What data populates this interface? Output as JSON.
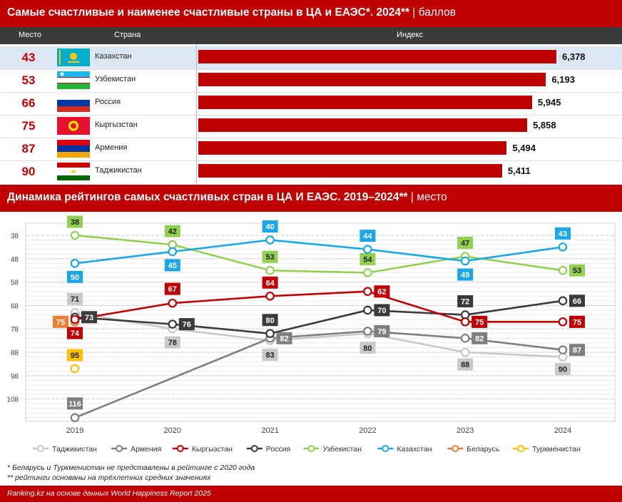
{
  "title1": {
    "bold": "Самые счастливые и наименее счастливые страны в ЦА и ЕАЭС*. 2024**",
    "unit": "| баллов"
  },
  "table_header": {
    "rank": "Место",
    "country": "Страна",
    "index": "Индекс"
  },
  "rows": [
    {
      "rank": "43",
      "country": "Казахстан",
      "value": 6.378,
      "label": "6,378",
      "flag": "kz-flag-icon"
    },
    {
      "rank": "53",
      "country": "Узбекистан",
      "value": 6.193,
      "label": "6,193",
      "flag": "uz-flag-icon"
    },
    {
      "rank": "66",
      "country": "Россия",
      "value": 5.945,
      "label": "5,945",
      "flag": "ru-flag-icon"
    },
    {
      "rank": "75",
      "country": "Кыргызстан",
      "value": 5.858,
      "label": "5,858",
      "flag": "kg-flag-icon"
    },
    {
      "rank": "87",
      "country": "Армения",
      "value": 5.494,
      "label": "5,494",
      "flag": "am-flag-icon"
    },
    {
      "rank": "90",
      "country": "Таджикистан",
      "value": 5.411,
      "label": "5,411",
      "flag": "tj-flag-icon"
    }
  ],
  "title2": {
    "bold": "Динамика рейтингов самых счастливых стран в ЦА И ЕАЭС. 2019–2024**",
    "unit": "| место"
  },
  "chart_data": {
    "type": "line",
    "x": [
      2019,
      2020,
      2021,
      2022,
      2023,
      2024
    ],
    "y_ticks": [
      38,
      48,
      58,
      68,
      78,
      88,
      98,
      108
    ],
    "ylim": [
      36,
      118
    ],
    "y_inverted": true,
    "series": [
      {
        "name": "Таджикистан",
        "color": "#c8c8c8",
        "values": [
          71,
          78,
          83,
          80,
          88,
          90
        ]
      },
      {
        "name": "Армения",
        "color": "#7f7f7f",
        "values": [
          116,
          null,
          82,
          79,
          82,
          87
        ]
      },
      {
        "name": "Кыргызстан",
        "color": "#c00000",
        "values": [
          74,
          67,
          64,
          62,
          75,
          75
        ]
      },
      {
        "name": "Россия",
        "color": "#3a3a3a",
        "values": [
          73,
          76,
          80,
          70,
          72,
          66
        ]
      },
      {
        "name": "Узбекистан",
        "color": "#92d050",
        "values": [
          38,
          42,
          53,
          54,
          47,
          53
        ]
      },
      {
        "name": "Казахстан",
        "color": "#1aa7e8",
        "values": [
          50,
          45,
          40,
          44,
          49,
          43
        ]
      },
      {
        "name": "Беларусь",
        "color": "#ed7d31",
        "values": [
          75,
          null,
          null,
          null,
          null,
          null
        ]
      },
      {
        "name": "Туркменистан",
        "color": "#ffc000",
        "values": [
          95,
          null,
          null,
          null,
          null,
          null
        ]
      }
    ]
  },
  "notes": [
    "* Беларусь и Туркменистан не представлены в рейтинге с 2020 года",
    "** рейтинги основаны на трёхлетних средних значениях"
  ],
  "footer": "Ranking.kz на основе данных World Happiness Report 2025"
}
